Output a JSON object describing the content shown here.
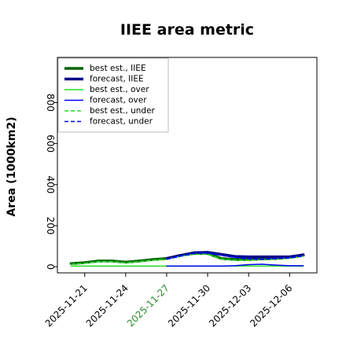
{
  "chart_data": {
    "type": "line",
    "title": "IIEE area metric",
    "ylabel": "Area (1000km2)",
    "xlabel": "",
    "ylim": [
      -30,
      1020
    ],
    "xlim": [
      "2025-11-19",
      "2025-12-08"
    ],
    "yticks": [
      "0",
      "200",
      "400",
      "600",
      "800"
    ],
    "xticks": [
      {
        "label": "2025-11-21",
        "color": "#000000"
      },
      {
        "label": "2025-11-24",
        "color": "#000000"
      },
      {
        "label": "2025-11-27",
        "color": "#2e8b2e"
      },
      {
        "label": "2025-11-30",
        "color": "#000000"
      },
      {
        "label": "2025-12-03",
        "color": "#000000"
      },
      {
        "label": "2025-12-06",
        "color": "#000000"
      }
    ],
    "legend_position": "top-left",
    "dates": [
      "2025-11-20",
      "2025-11-21",
      "2025-11-22",
      "2025-11-23",
      "2025-11-24",
      "2025-11-25",
      "2025-11-26",
      "2025-11-27",
      "2025-11-28",
      "2025-11-29",
      "2025-11-30",
      "2025-12-01",
      "2025-12-02",
      "2025-12-03",
      "2025-12-04",
      "2025-12-05",
      "2025-12-06",
      "2025-12-07"
    ],
    "series": [
      {
        "name": "best est., IIEE",
        "color": "#006400",
        "style": "solid",
        "width": 3.5,
        "x": [
          "2025-11-20",
          "2025-11-21",
          "2025-11-22",
          "2025-11-23",
          "2025-11-24",
          "2025-11-25",
          "2025-11-26",
          "2025-11-27",
          "2025-11-28",
          "2025-11-29",
          "2025-11-30",
          "2025-12-01",
          "2025-12-02",
          "2025-12-03",
          "2025-12-04",
          "2025-12-05",
          "2025-12-06",
          "2025-12-07"
        ],
        "y": [
          15,
          20,
          28,
          28,
          22,
          28,
          35,
          40,
          55,
          65,
          65,
          40,
          35,
          35,
          38,
          40,
          45,
          55
        ]
      },
      {
        "name": "forecast, IIEE",
        "color": "#00008b",
        "style": "solid",
        "width": 3.5,
        "x": [
          "2025-11-27",
          "2025-11-28",
          "2025-11-29",
          "2025-11-30",
          "2025-12-01",
          "2025-12-02",
          "2025-12-03",
          "2025-12-04",
          "2025-12-05",
          "2025-12-06",
          "2025-12-07"
        ],
        "y": [
          40,
          55,
          68,
          70,
          60,
          50,
          48,
          48,
          48,
          48,
          58
        ]
      },
      {
        "name": "best est., over",
        "color": "#22dd22",
        "style": "solid",
        "width": 1.5,
        "x": [
          "2025-11-20",
          "2025-11-21",
          "2025-11-22",
          "2025-11-23",
          "2025-11-24",
          "2025-11-25",
          "2025-11-26",
          "2025-11-27",
          "2025-11-28",
          "2025-11-29",
          "2025-11-30",
          "2025-12-01",
          "2025-12-02",
          "2025-12-03",
          "2025-12-04",
          "2025-12-05",
          "2025-12-06",
          "2025-12-07"
        ],
        "y": [
          3,
          3,
          3,
          3,
          3,
          3,
          3,
          3,
          3,
          3,
          3,
          3,
          3,
          3,
          3,
          3,
          3,
          3
        ]
      },
      {
        "name": "forecast, over",
        "color": "#0000ff",
        "style": "solid",
        "width": 1.5,
        "x": [
          "2025-11-27",
          "2025-11-28",
          "2025-11-29",
          "2025-11-30",
          "2025-12-01",
          "2025-12-02",
          "2025-12-03",
          "2025-12-04",
          "2025-12-05",
          "2025-12-06",
          "2025-12-07"
        ],
        "y": [
          3,
          3,
          3,
          3,
          3,
          5,
          10,
          12,
          8,
          5,
          5
        ]
      },
      {
        "name": "best est., under",
        "color": "#22dd22",
        "style": "dashed",
        "width": 1.5,
        "x": [
          "2025-11-20",
          "2025-11-21",
          "2025-11-22",
          "2025-11-23",
          "2025-11-24",
          "2025-11-25",
          "2025-11-26",
          "2025-11-27",
          "2025-11-28",
          "2025-11-29",
          "2025-11-30",
          "2025-12-01",
          "2025-12-02",
          "2025-12-03",
          "2025-12-04",
          "2025-12-05",
          "2025-12-06",
          "2025-12-07"
        ],
        "y": [
          12,
          17,
          25,
          25,
          19,
          25,
          32,
          37,
          52,
          62,
          62,
          37,
          32,
          32,
          35,
          37,
          42,
          52
        ]
      },
      {
        "name": "forecast, under",
        "color": "#0000ff",
        "style": "dashed",
        "width": 1.5,
        "x": [
          "2025-11-27",
          "2025-11-28",
          "2025-11-29",
          "2025-11-30",
          "2025-12-01",
          "2025-12-02",
          "2025-12-03",
          "2025-12-04",
          "2025-12-05",
          "2025-12-06",
          "2025-12-07"
        ],
        "y": [
          37,
          52,
          65,
          67,
          55,
          45,
          38,
          36,
          40,
          43,
          53
        ]
      }
    ]
  }
}
